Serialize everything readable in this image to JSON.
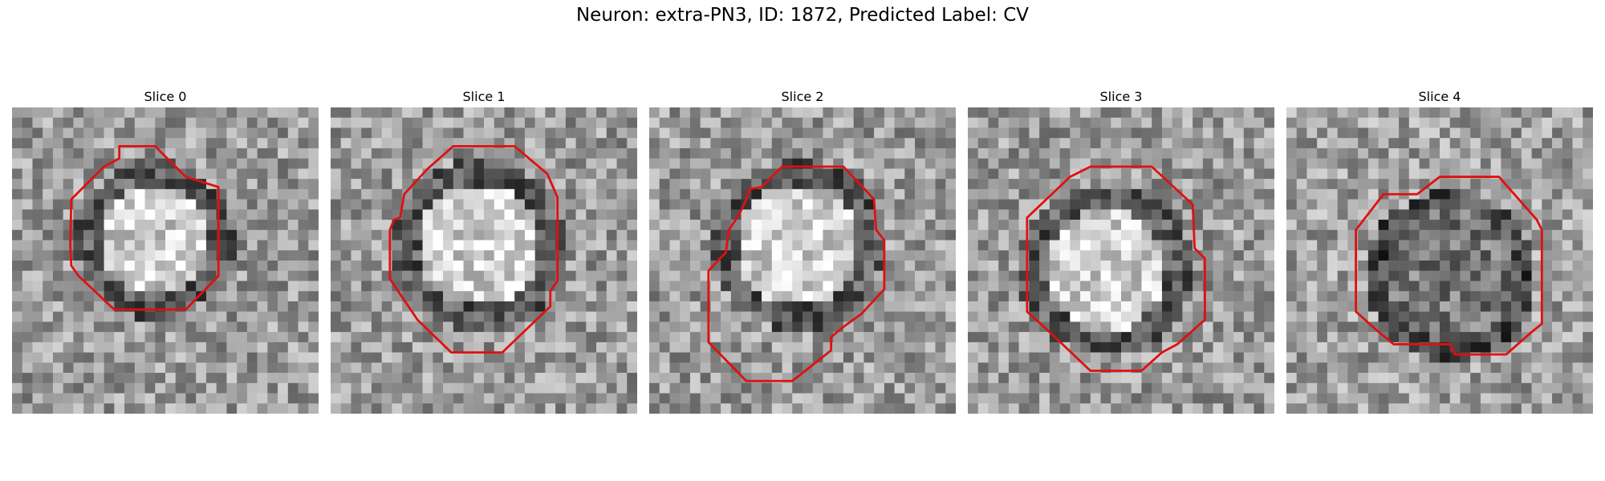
{
  "figure": {
    "title": "Neuron: extra-PN3, ID: 1872, Predicted Label: CV",
    "contour_color": "#e01010",
    "colormap": "gray"
  },
  "panels": [
    {
      "title": "Slice 0",
      "seed": 11,
      "tone": "bright-center"
    },
    {
      "title": "Slice 1",
      "seed": 23,
      "tone": "bright-center"
    },
    {
      "title": "Slice 2",
      "seed": 37,
      "tone": "bright-center"
    },
    {
      "title": "Slice 3",
      "seed": 51,
      "tone": "bright-center"
    },
    {
      "title": "Slice 4",
      "seed": 67,
      "tone": "dark-ring"
    }
  ]
}
